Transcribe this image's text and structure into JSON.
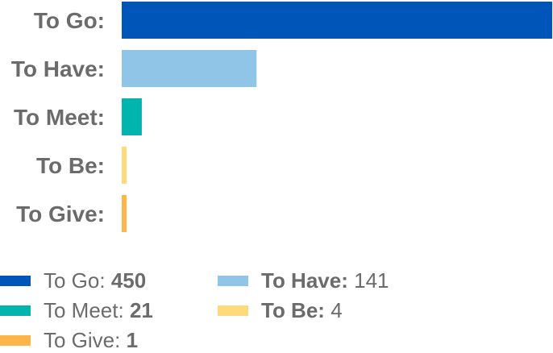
{
  "chart_data": {
    "type": "bar",
    "orientation": "horizontal",
    "categories": [
      "To Go:",
      "To Have:",
      "To Meet:",
      "To Be:",
      "To Give:"
    ],
    "values": [
      450,
      141,
      21,
      4,
      1
    ],
    "colors": [
      "#0055b8",
      "#90c5e7",
      "#00b5ad",
      "#ffda7a",
      "#ffb549"
    ],
    "grid": false,
    "legend_position": "bottom",
    "legend": [
      {
        "label": "To Go:",
        "value": "450",
        "label_bold": false,
        "value_bold": true,
        "color": "#0055b8"
      },
      {
        "label": "To Have:",
        "value": "141",
        "label_bold": true,
        "value_bold": false,
        "color": "#90c5e7"
      },
      {
        "label": "To Meet:",
        "value": "21",
        "label_bold": false,
        "value_bold": true,
        "color": "#00b5ad"
      },
      {
        "label": "To Be:",
        "value": "4",
        "label_bold": true,
        "value_bold": false,
        "color": "#ffda7a"
      },
      {
        "label": "To Give:",
        "value": "1",
        "label_bold": false,
        "value_bold": true,
        "color": "#ffb549"
      }
    ]
  }
}
